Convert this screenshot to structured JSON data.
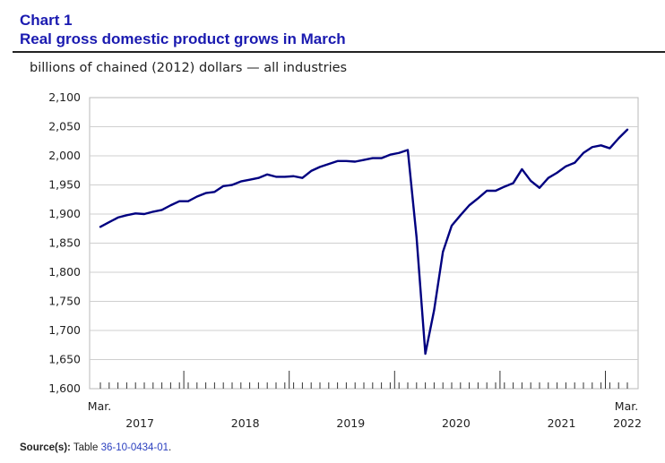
{
  "header": {
    "chart_number": "Chart 1",
    "title": "Real gross domestic product grows in March"
  },
  "source": {
    "label": "Source(s):",
    "text": "Table",
    "table_id": "36-10-0434-01",
    "end": "."
  },
  "colors": {
    "line": "#000080",
    "title": "#1a1ab0",
    "link": "#2a3fbf"
  },
  "chart_data": {
    "type": "line",
    "title": "Real gross domestic product grows in March",
    "ylabel": "billions of chained (2012) dollars — all industries",
    "xlabel": "",
    "ylim": [
      1600,
      2100
    ],
    "yticks": [
      1600,
      1650,
      1700,
      1750,
      1800,
      1850,
      1900,
      1950,
      2000,
      2050,
      2100
    ],
    "ytick_labels": [
      "1,600",
      "1,650",
      "1,700",
      "1,750",
      "1,800",
      "1,850",
      "1,900",
      "1,950",
      "2,000",
      "2,050",
      "2,100"
    ],
    "x_start_label": "Mar.",
    "x_end_label": "Mar.",
    "year_labels": [
      {
        "label": "2017",
        "month_index": 4.5
      },
      {
        "label": "2018",
        "month_index": 16.5
      },
      {
        "label": "2019",
        "month_index": 28.5
      },
      {
        "label": "2020",
        "month_index": 40.5
      },
      {
        "label": "2021",
        "month_index": 52.5
      },
      {
        "label": "2022",
        "month_index": 60
      }
    ],
    "year_boundaries": [
      9.5,
      21.5,
      33.5,
      45.5,
      57.5
    ],
    "grid": true,
    "series": [
      {
        "name": "all industries",
        "values": [
          1878,
          1886,
          1894,
          1898,
          1901,
          1900,
          1904,
          1907,
          1915,
          1922,
          1922,
          1930,
          1936,
          1938,
          1948,
          1950,
          1956,
          1959,
          1962,
          1968,
          1964,
          1964,
          1965,
          1962,
          1974,
          1981,
          1986,
          1991,
          1991,
          1990,
          1993,
          1996,
          1996,
          2002,
          2005,
          2010,
          1860,
          1660,
          1735,
          1835,
          1880,
          1898,
          1915,
          1927,
          1940,
          1940,
          1947,
          1953,
          1977,
          1957,
          1945,
          1962,
          1971,
          1982,
          1988,
          2005,
          2015,
          2018,
          2013,
          2030,
          2045
        ]
      }
    ]
  }
}
